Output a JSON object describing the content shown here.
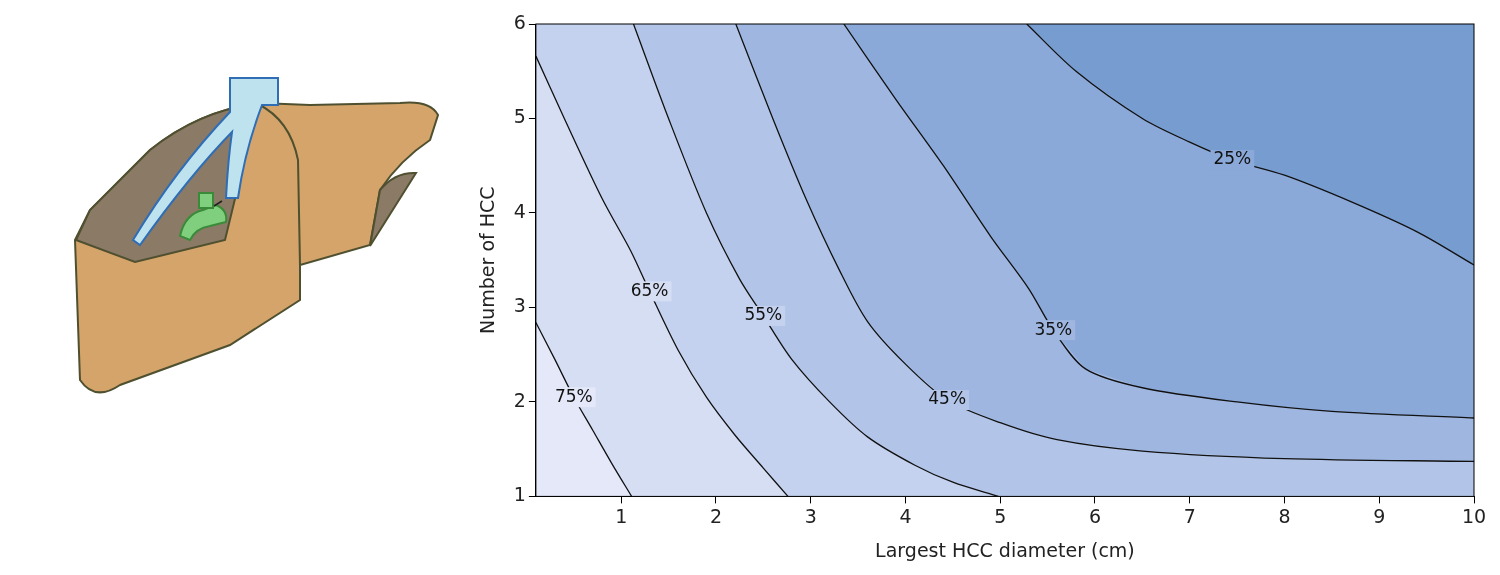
{
  "chart_data": {
    "type": "contour",
    "xlabel": "Largest HCC diameter (cm)",
    "ylabel": "Number of HCC",
    "xlim": [
      0.1,
      10
    ],
    "xticks": [
      1,
      2,
      3,
      4,
      5,
      6,
      7,
      8,
      9,
      10
    ],
    "ylim": [
      1,
      6
    ],
    "yticks": [
      1,
      2,
      3,
      4,
      5,
      6
    ],
    "grid": false,
    "color": "#e4e8f8",
    "series": [
      {
        "name": "75%",
        "color": "#d6def4",
        "x": [
          0.1,
          0.3,
          0.5,
          0.7,
          0.9,
          1.11
        ],
        "values": [
          2.84,
          2.45,
          2.05,
          1.7,
          1.35,
          1
        ]
      },
      {
        "name": "65%",
        "color": "#c4d2ef",
        "x": [
          0.1,
          0.4,
          0.8,
          1.1,
          1.3,
          1.6,
          1.9,
          2.2,
          2.5,
          2.76
        ],
        "values": [
          5.66,
          5.0,
          4.15,
          3.6,
          3.17,
          2.55,
          2.05,
          1.65,
          1.3,
          1
        ]
      },
      {
        "name": "55%",
        "color": "#b2c5e8",
        "x": [
          1.13,
          1.5,
          1.9,
          2.25,
          2.5,
          2.8,
          3.2,
          3.6,
          4.1,
          4.5,
          4.98
        ],
        "values": [
          6,
          5.0,
          4.0,
          3.3,
          2.91,
          2.45,
          2.0,
          1.63,
          1.33,
          1.15,
          1
        ]
      },
      {
        "name": "45%",
        "color": "#9fb7e0",
        "x": [
          2.21,
          2.6,
          2.95,
          3.3,
          3.6,
          4.0,
          4.44,
          5.0,
          5.6,
          6.5,
          8,
          10
        ],
        "values": [
          6,
          5.0,
          4.15,
          3.4,
          2.85,
          2.4,
          2.02,
          1.78,
          1.6,
          1.48,
          1.4,
          1.37
        ]
      },
      {
        "name": "35%",
        "color": "#8aa8d8",
        "x": [
          3.35,
          3.9,
          4.4,
          4.9,
          5.3,
          5.56,
          5.9,
          6.5,
          7.5,
          8.5,
          10
        ],
        "values": [
          6,
          5.2,
          4.5,
          3.75,
          3.2,
          2.76,
          2.35,
          2.15,
          2.0,
          1.9,
          1.83
        ]
      },
      {
        "name": "25%",
        "color": "#779ccf",
        "x": [
          5.28,
          5.8,
          6.5,
          7.0,
          7.45,
          8.0,
          8.7,
          9.4,
          10
        ],
        "values": [
          6,
          5.5,
          5.0,
          4.75,
          4.56,
          4.4,
          4.12,
          3.8,
          3.45
        ]
      }
    ]
  }
}
